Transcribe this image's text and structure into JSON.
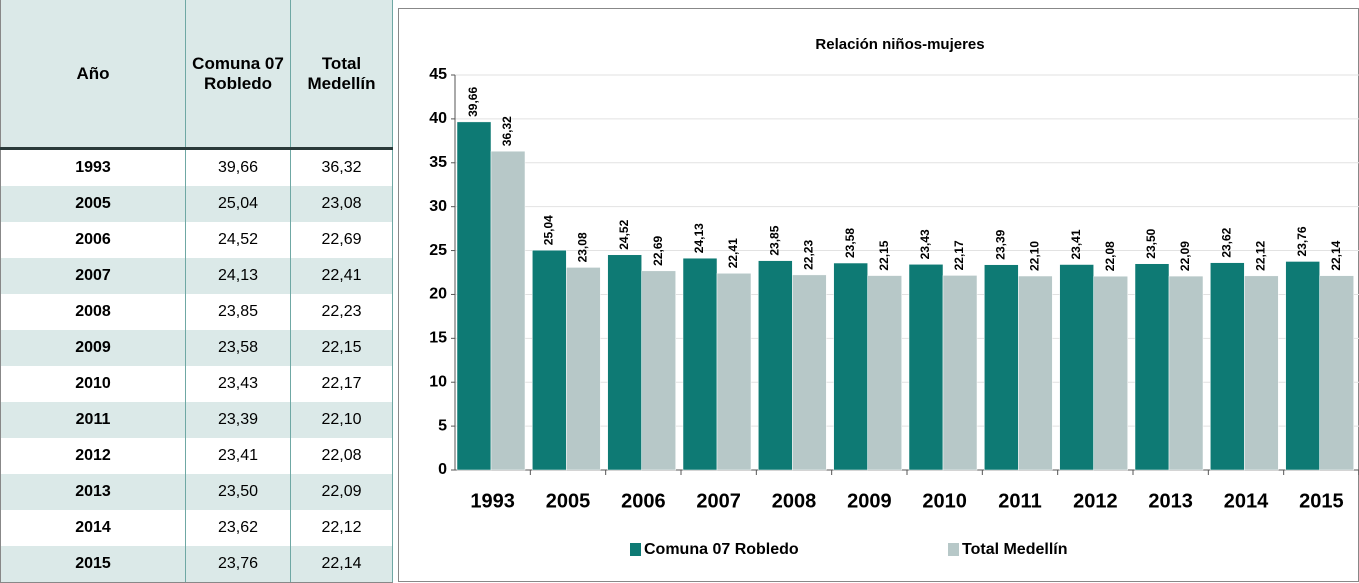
{
  "table": {
    "header": [
      "Año",
      "Comuna 07 Robledo",
      "Total Medellín"
    ],
    "rows": [
      [
        "1993",
        "39,66",
        "36,32"
      ],
      [
        "2005",
        "25,04",
        "23,08"
      ],
      [
        "2006",
        "24,52",
        "22,69"
      ],
      [
        "2007",
        "24,13",
        "22,41"
      ],
      [
        "2008",
        "23,85",
        "22,23"
      ],
      [
        "2009",
        "23,58",
        "22,15"
      ],
      [
        "2010",
        "23,43",
        "22,17"
      ],
      [
        "2011",
        "23,39",
        "22,10"
      ],
      [
        "2012",
        "23,41",
        "22,08"
      ],
      [
        "2013",
        "23,50",
        "22,09"
      ],
      [
        "2014",
        "23,62",
        "22,12"
      ],
      [
        "2015",
        "23,76",
        "22,14"
      ]
    ]
  },
  "chart_data": {
    "type": "bar",
    "title": "Relación niños-mujeres",
    "categories": [
      "1993",
      "2005",
      "2006",
      "2007",
      "2008",
      "2009",
      "2010",
      "2011",
      "2012",
      "2013",
      "2014",
      "2015"
    ],
    "series": [
      {
        "name": "Comuna 07 Robledo",
        "color": "#0e7a74",
        "values": [
          39.66,
          25.04,
          24.52,
          24.13,
          23.85,
          23.58,
          23.43,
          23.39,
          23.41,
          23.5,
          23.62,
          23.76
        ],
        "value_labels": [
          "39,66",
          "25,04",
          "24,52",
          "24,13",
          "23,85",
          "23,58",
          "23,43",
          "23,39",
          "23,41",
          "23,50",
          "23,62",
          "23,76"
        ]
      },
      {
        "name": "Total Medellín",
        "color": "#b7c8c8",
        "values": [
          36.32,
          23.08,
          22.69,
          22.41,
          22.23,
          22.15,
          22.17,
          22.1,
          22.08,
          22.09,
          22.12,
          22.14
        ],
        "value_labels": [
          "36,32",
          "23,08",
          "22,69",
          "22,41",
          "22,23",
          "22,15",
          "22,17",
          "22,10",
          "22,08",
          "22,09",
          "22,12",
          "22,14"
        ]
      }
    ],
    "ylim": [
      0,
      45
    ],
    "yticks": [
      0,
      5,
      10,
      15,
      20,
      25,
      30,
      35,
      40,
      45
    ],
    "grid": true,
    "legend": "bottom"
  }
}
